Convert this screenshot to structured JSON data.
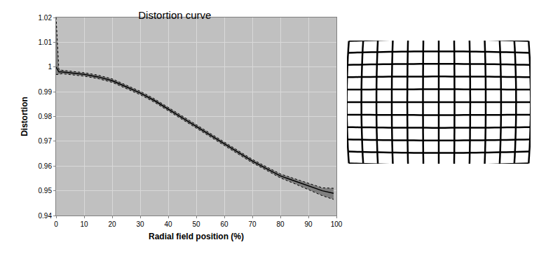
{
  "chart_data": {
    "type": "line",
    "title": "Distortion curve",
    "x_label": "Radial field position (%)",
    "y_label": "Distortion",
    "x": [
      0,
      1,
      2,
      5,
      10,
      15,
      20,
      25,
      30,
      35,
      40,
      45,
      50,
      55,
      60,
      65,
      70,
      75,
      80,
      85,
      90,
      95,
      99
    ],
    "series": [
      {
        "color": "#000000",
        "values": [
          1.0,
          0.998,
          0.998,
          0.9977,
          0.997,
          0.996,
          0.9945,
          0.992,
          0.9895,
          0.9865,
          0.983,
          0.9795,
          0.976,
          0.9725,
          0.969,
          0.9655,
          0.962,
          0.959,
          0.956,
          0.954,
          0.952,
          0.95,
          0.949
        ],
        "upper": [
          1.02,
          0.999,
          0.9987,
          0.9984,
          0.9977,
          0.9967,
          0.9952,
          0.9927,
          0.9902,
          0.9872,
          0.9837,
          0.9802,
          0.9767,
          0.9732,
          0.9697,
          0.9662,
          0.9627,
          0.9597,
          0.9568,
          0.9549,
          0.953,
          0.9512,
          0.951
        ],
        "lower": [
          0.997,
          0.997,
          0.9973,
          0.997,
          0.9963,
          0.9953,
          0.9938,
          0.9913,
          0.9888,
          0.9858,
          0.9823,
          0.9788,
          0.9753,
          0.9718,
          0.9683,
          0.9648,
          0.9613,
          0.9583,
          0.9552,
          0.9529,
          0.9505,
          0.948,
          0.9465
        ]
      }
    ],
    "xlim": [
      0,
      100
    ],
    "xticks": [
      0,
      10,
      20,
      30,
      40,
      50,
      60,
      70,
      80,
      90,
      100
    ],
    "ylim": [
      0.94,
      1.02
    ],
    "yticks": [
      0.94,
      0.95,
      0.96,
      0.97,
      0.98,
      0.99,
      1,
      1.01,
      1.02
    ],
    "grid": true
  }
}
